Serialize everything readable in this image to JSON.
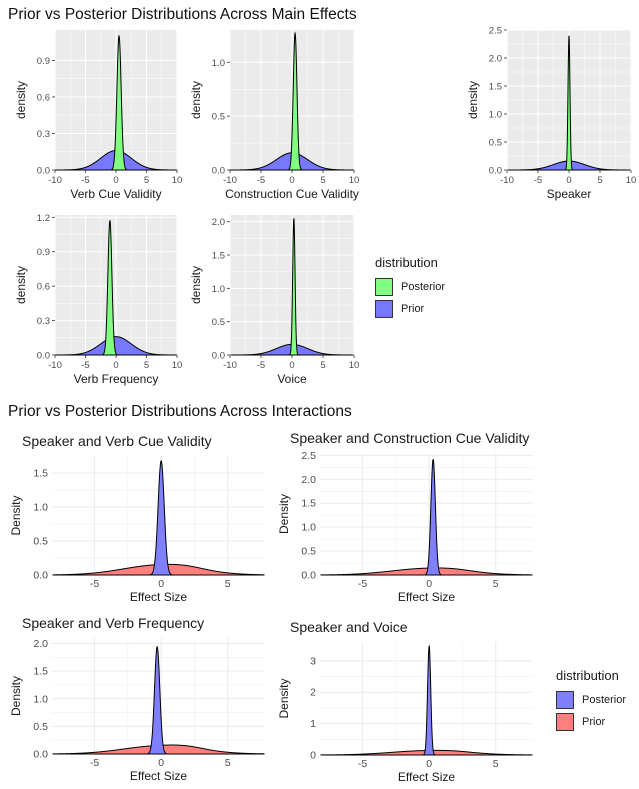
{
  "figure": {
    "section_main_title": "Prior vs Posterior Distributions Across Main Effects",
    "section_interaction_title": "Prior vs Posterior Distributions Across Interactions"
  },
  "legend_main": {
    "title": "distribution",
    "entries": [
      {
        "label": "Posterior",
        "color": "#80ff80"
      },
      {
        "label": "Prior",
        "color": "#7878ff"
      }
    ]
  },
  "legend_interactions": {
    "title": "distribution",
    "entries": [
      {
        "label": "Posterior",
        "color": "#8080ff"
      },
      {
        "label": "Prior",
        "color": "#ff7f7f"
      }
    ]
  },
  "colors": {
    "panel_bg_main": "#ebebeb",
    "grid_main": "#ffffff",
    "grid_interaction": "#ebebeb",
    "posterior_main": "#80ff80",
    "prior_main": "#7878ff",
    "posterior_interaction": "#8080ff",
    "prior_interaction": "#ff7f7f"
  },
  "chart_data": [
    {
      "type": "area",
      "theme": "gray",
      "title": "",
      "xlabel": "Verb Cue Validity",
      "ylabel": "density",
      "xlim": [
        -10,
        10
      ],
      "ylim": [
        0,
        1.15
      ],
      "xticks": [
        -10,
        -5,
        0,
        5,
        10
      ],
      "yticks": [
        0.0,
        0.3,
        0.6,
        0.9
      ],
      "series": [
        {
          "name": "Posterior",
          "center": 0.5,
          "sd": 0.35,
          "peak": 1.1
        },
        {
          "name": "Prior",
          "center": 0,
          "sd": 2.5,
          "peak": 0.16
        }
      ]
    },
    {
      "type": "area",
      "theme": "gray",
      "title": "",
      "xlabel": "Construction Cue Validity",
      "ylabel": "density",
      "xlim": [
        -10,
        10
      ],
      "ylim": [
        0,
        1.3
      ],
      "xticks": [
        -10,
        -5,
        0,
        5,
        10
      ],
      "yticks": [
        0.0,
        0.5,
        1.0
      ],
      "series": [
        {
          "name": "Posterior",
          "center": 0.5,
          "sd": 0.3,
          "peak": 1.27
        },
        {
          "name": "Prior",
          "center": 0,
          "sd": 2.5,
          "peak": 0.16
        }
      ]
    },
    {
      "type": "area",
      "theme": "gray",
      "title": "",
      "xlabel": "Speaker",
      "ylabel": "density",
      "xlim": [
        -10,
        10
      ],
      "ylim": [
        0,
        2.5
      ],
      "xticks": [
        -10,
        -5,
        0,
        5,
        10
      ],
      "yticks": [
        0.0,
        0.5,
        1.0,
        1.5,
        2.0,
        2.5
      ],
      "series": [
        {
          "name": "Posterior",
          "center": 0,
          "sd": 0.16,
          "peak": 2.4
        },
        {
          "name": "Prior",
          "center": 0,
          "sd": 2.5,
          "peak": 0.16
        }
      ]
    },
    {
      "type": "area",
      "theme": "gray",
      "title": "",
      "xlabel": "Verb Frequency",
      "ylabel": "density",
      "xlim": [
        -10,
        10
      ],
      "ylim": [
        0,
        1.22
      ],
      "xticks": [
        -10,
        -5,
        0,
        5,
        10
      ],
      "yticks": [
        0.0,
        0.3,
        0.6,
        0.9,
        1.2
      ],
      "series": [
        {
          "name": "Posterior",
          "center": -1.0,
          "sd": 0.33,
          "peak": 1.17
        },
        {
          "name": "Prior",
          "center": 0,
          "sd": 2.5,
          "peak": 0.16
        }
      ]
    },
    {
      "type": "area",
      "theme": "gray",
      "title": "",
      "xlabel": "Voice",
      "ylabel": "density",
      "xlim": [
        -10,
        10
      ],
      "ylim": [
        0,
        2.1
      ],
      "xticks": [
        -10,
        -5,
        0,
        5,
        10
      ],
      "yticks": [
        0.0,
        0.5,
        1.0,
        1.5,
        2.0
      ],
      "series": [
        {
          "name": "Posterior",
          "center": 0.3,
          "sd": 0.19,
          "peak": 2.05
        },
        {
          "name": "Prior",
          "center": 0,
          "sd": 2.5,
          "peak": 0.16
        }
      ]
    },
    {
      "type": "area",
      "theme": "minimal",
      "title": "Speaker and Verb Cue Validity",
      "xlabel": "Effect Size",
      "ylabel": "Density",
      "xlim": [
        -8.2,
        7.8
      ],
      "ylim": [
        0,
        1.75
      ],
      "xticks": [
        -5,
        0,
        5
      ],
      "yticks": [
        0.0,
        0.5,
        1.0,
        1.5
      ],
      "series": [
        {
          "name": "Posterior",
          "center": 0,
          "sd": 0.23,
          "peak": 1.68
        },
        {
          "name": "Prior",
          "center": 0,
          "sd": 2.8,
          "peak": 0.15,
          "bump": 0.02
        }
      ]
    },
    {
      "type": "area",
      "theme": "minimal",
      "title": "Speaker and Construction Cue Validity",
      "xlabel": "Effect Size",
      "ylabel": "Density",
      "xlim": [
        -8.2,
        7.8
      ],
      "ylim": [
        0,
        2.55
      ],
      "xticks": [
        -5,
        0,
        5
      ],
      "yticks": [
        0.0,
        0.5,
        1.0,
        1.5,
        2.0,
        2.5
      ],
      "series": [
        {
          "name": "Posterior",
          "center": 0.3,
          "sd": 0.17,
          "peak": 2.42
        },
        {
          "name": "Prior",
          "center": 0,
          "sd": 2.8,
          "peak": 0.14,
          "bump": 0.02
        }
      ]
    },
    {
      "type": "area",
      "theme": "minimal",
      "title": "Speaker and Verb Frequency",
      "xlabel": "Effect Size",
      "ylabel": "Density",
      "xlim": [
        -8.2,
        7.8
      ],
      "ylim": [
        0,
        2.1
      ],
      "xticks": [
        -5,
        0,
        5
      ],
      "yticks": [
        0.0,
        0.5,
        1.0,
        1.5,
        2.0
      ],
      "series": [
        {
          "name": "Posterior",
          "center": -0.3,
          "sd": 0.2,
          "peak": 1.94
        },
        {
          "name": "Prior",
          "center": 0,
          "sd": 2.8,
          "peak": 0.15,
          "bump": 0.03
        }
      ]
    },
    {
      "type": "area",
      "theme": "minimal",
      "title": "Speaker and Voice",
      "xlabel": "Effect Size",
      "ylabel": "Density",
      "xlim": [
        -8.2,
        7.8
      ],
      "ylim": [
        0,
        3.6
      ],
      "xticks": [
        -5,
        0,
        5
      ],
      "yticks": [
        0,
        1,
        2,
        3
      ],
      "series": [
        {
          "name": "Posterior",
          "center": 0,
          "sd": 0.12,
          "peak": 3.48
        },
        {
          "name": "Prior",
          "center": 0,
          "sd": 2.8,
          "peak": 0.14,
          "bump": 0.02
        }
      ]
    }
  ]
}
